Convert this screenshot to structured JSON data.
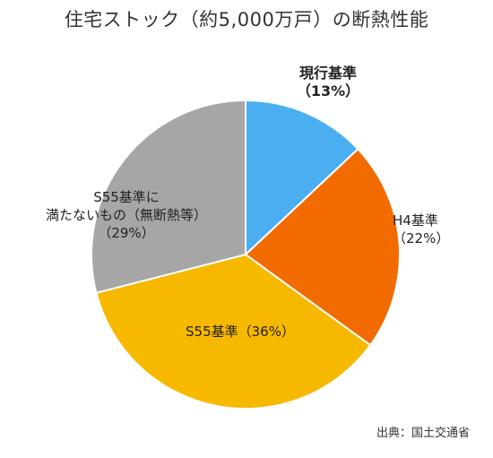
{
  "chart_data": {
    "type": "pie",
    "title": "住宅ストック（約5,000万戸）の断熱性能",
    "slices": [
      {
        "name_lines": [
          "現行基準",
          "（13%）"
        ],
        "value": 13,
        "color": "#4aaef0"
      },
      {
        "name_lines": [
          "H4基準",
          "（22%）"
        ],
        "value": 22,
        "color": "#f26b00"
      },
      {
        "name_lines": [
          "S55基準（36%）"
        ],
        "value": 36,
        "color": "#f7b800"
      },
      {
        "name_lines": [
          "S55基準に",
          "満たないもの（無断熱等）",
          "（29%）"
        ],
        "value": 29,
        "color": "#a6a6a6"
      }
    ]
  },
  "source": "出典：国土交通省"
}
